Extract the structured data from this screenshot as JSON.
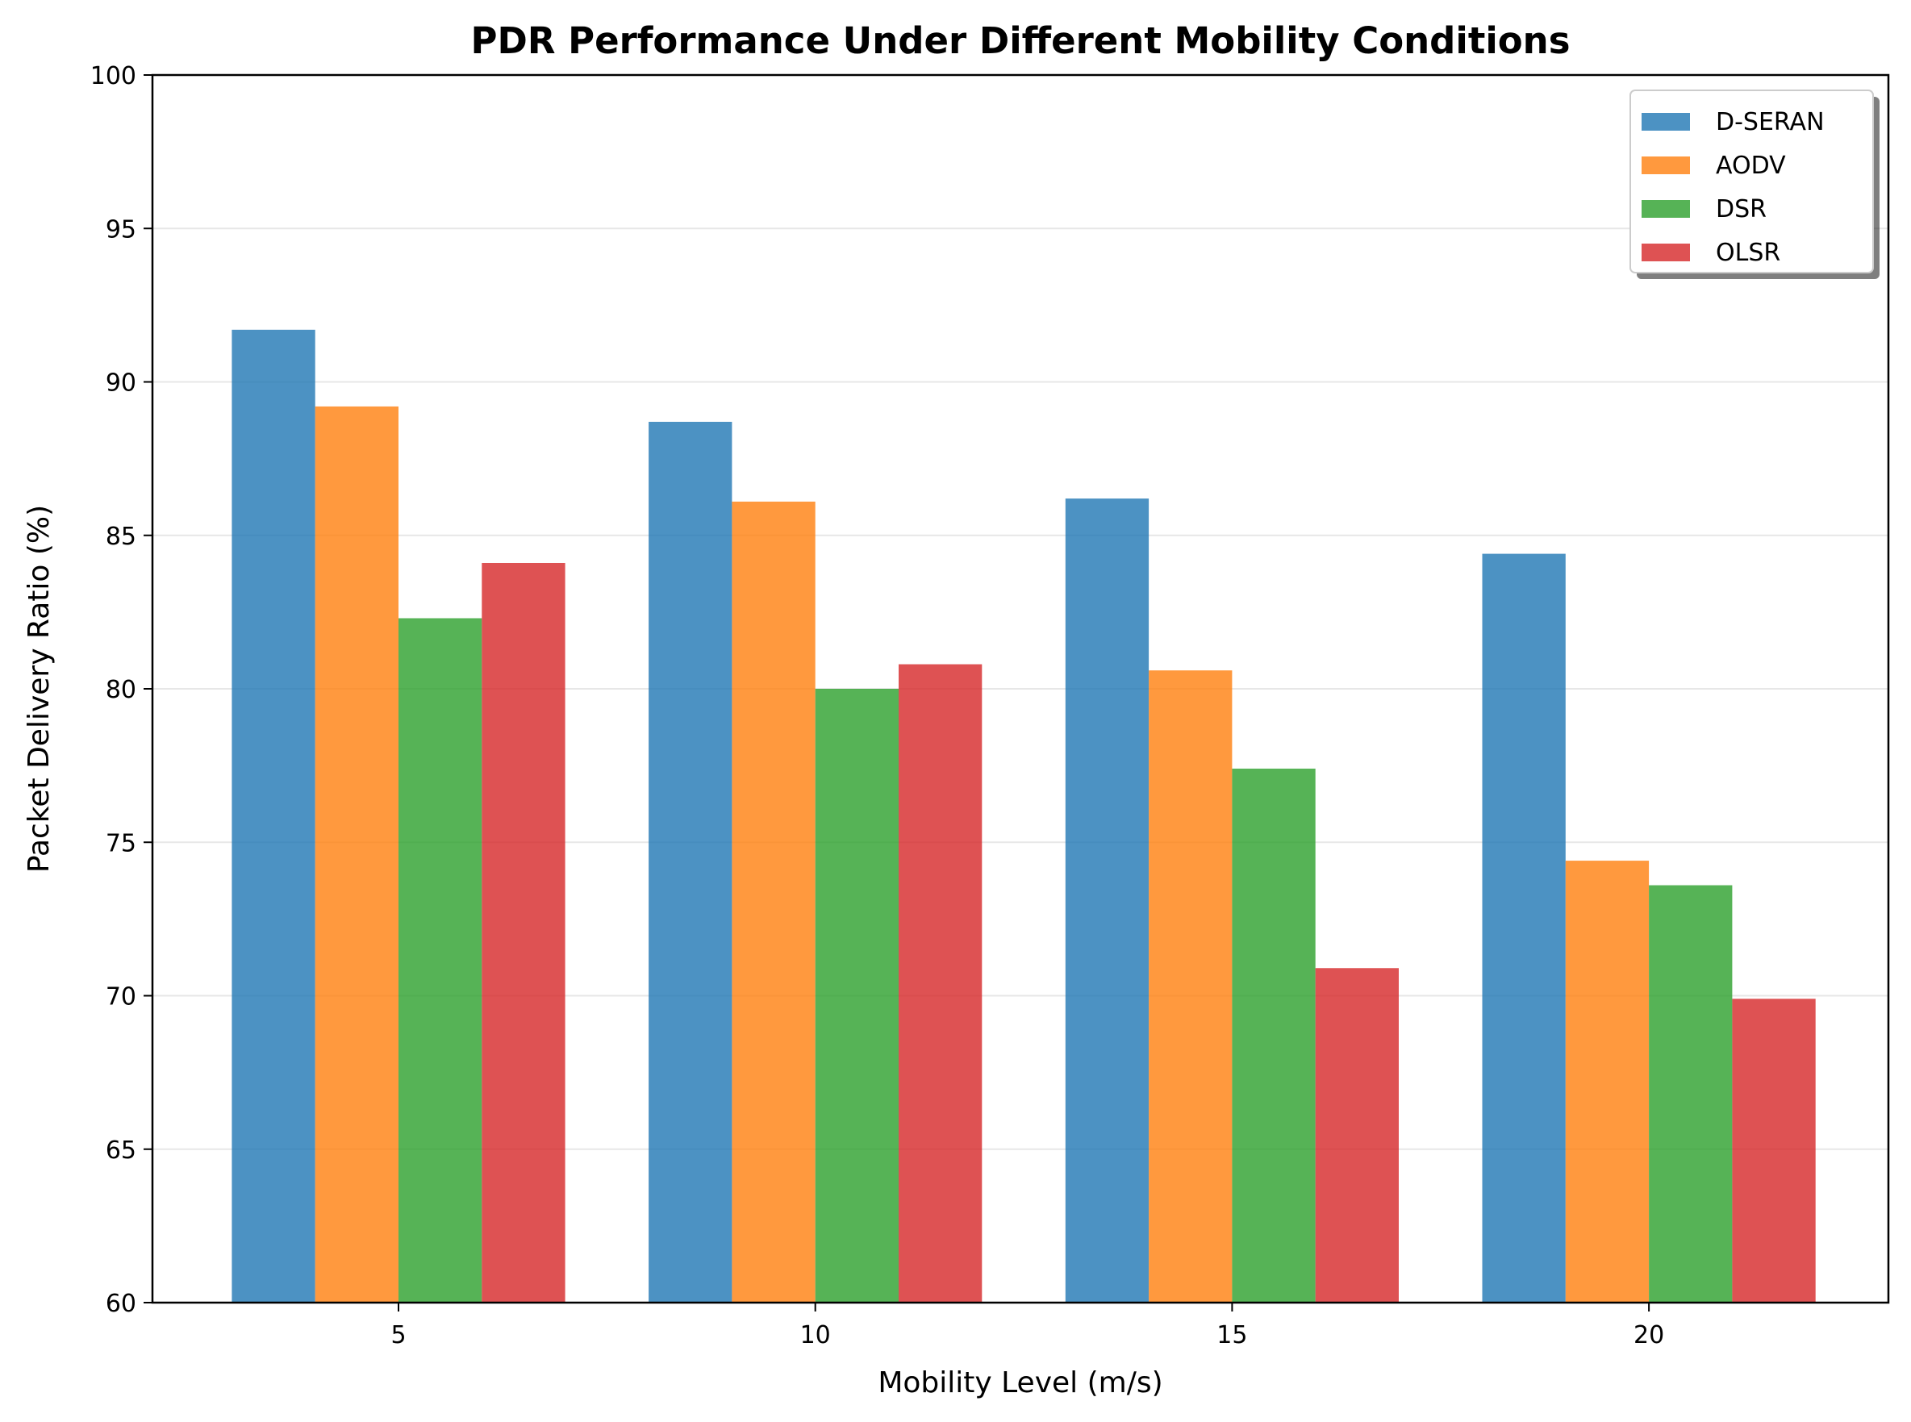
{
  "chart_data": {
    "type": "bar",
    "title": "PDR Performance Under Different Mobility Conditions",
    "xlabel": "Mobility Level (m/s)",
    "ylabel": "Packet Delivery Ratio (%)",
    "categories": [
      "5",
      "10",
      "15",
      "20"
    ],
    "yticks": [
      "60",
      "65",
      "70",
      "75",
      "80",
      "85",
      "90",
      "95",
      "100"
    ],
    "ylim": [
      60,
      100
    ],
    "grid": "horizontal",
    "legend_position": "top-right",
    "series": [
      {
        "name": "D-SERAN",
        "color": "#1f77b4",
        "values": [
          91.7,
          88.7,
          86.2,
          84.4
        ]
      },
      {
        "name": "AODV",
        "color": "#ff7f0e",
        "values": [
          89.2,
          86.1,
          80.6,
          74.4
        ]
      },
      {
        "name": "DSR",
        "color": "#2ca02c",
        "values": [
          82.3,
          80.0,
          77.4,
          73.6
        ]
      },
      {
        "name": "OLSR",
        "color": "#d62728",
        "values": [
          84.1,
          80.8,
          70.9,
          69.9
        ]
      }
    ]
  }
}
